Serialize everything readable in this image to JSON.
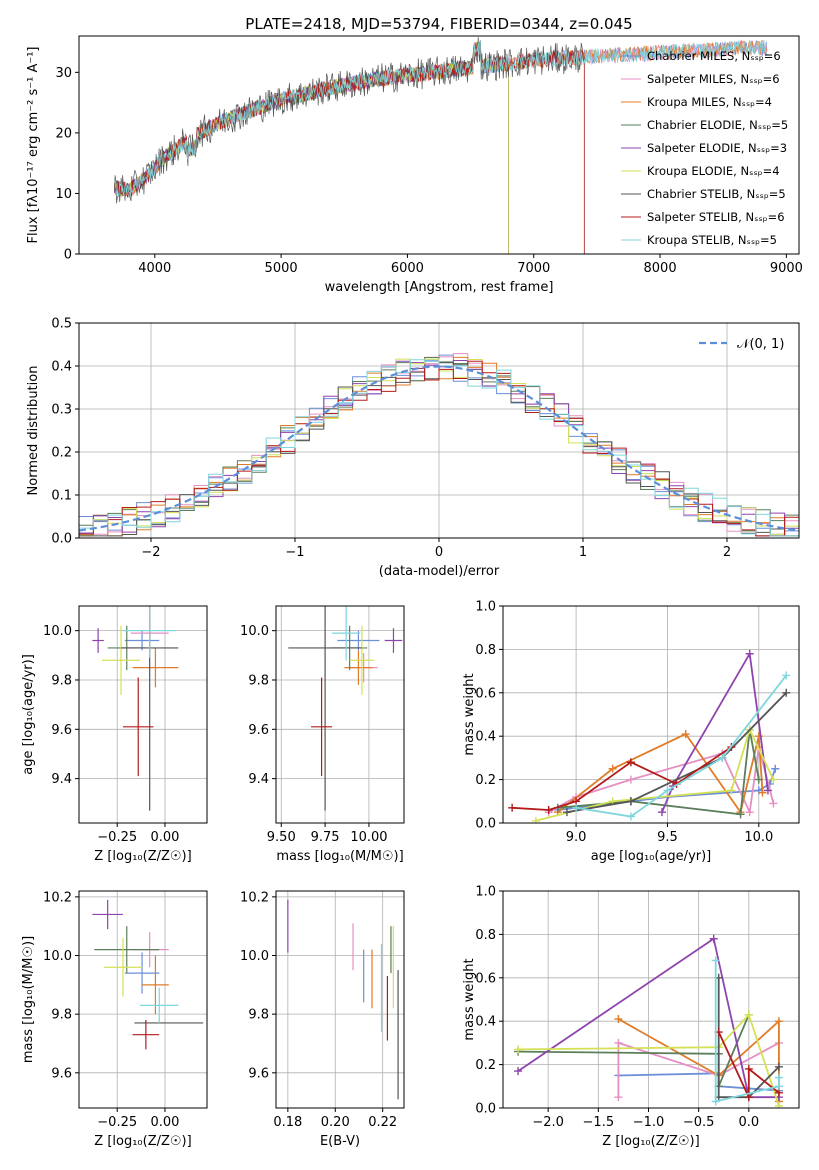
{
  "colors": [
    "#6a8fd8",
    "#e58fc4",
    "#e07b28",
    "#5a7f5a",
    "#8e44ad",
    "#d4e157",
    "#555555",
    "#b31b1b",
    "#7fd6dc"
  ],
  "chart_data": [
    {
      "id": "spectrum",
      "type": "line",
      "title": "PLATE=2418, MJD=53794, FIBERID=0344, z=0.045",
      "xlabel": "wavelength [Angstrom, rest frame]",
      "ylabel": "Flux [fλ10⁻¹⁷ erg cm⁻² s⁻¹ A⁻¹]",
      "xlim": [
        3400,
        9100
      ],
      "ylim": [
        0,
        36
      ],
      "xticks": [
        "4000",
        "5000",
        "6000",
        "7000",
        "8000",
        "9000"
      ],
      "yticks": [
        "0",
        "10",
        "20",
        "30"
      ],
      "grid": false,
      "legend_position": "top-right",
      "continuum": [
        [
          3680,
          11
        ],
        [
          3800,
          10.5
        ],
        [
          3950,
          13
        ],
        [
          4050,
          15.5
        ],
        [
          4300,
          19.5
        ],
        [
          4600,
          22.5
        ],
        [
          5000,
          25.5
        ],
        [
          5400,
          27.5
        ],
        [
          5800,
          29
        ],
        [
          6200,
          30
        ],
        [
          6600,
          31
        ],
        [
          7000,
          32
        ],
        [
          7400,
          32.5
        ],
        [
          7800,
          33
        ],
        [
          8200,
          33.5
        ],
        [
          8600,
          34
        ],
        [
          8850,
          34
        ]
      ],
      "series": [
        {
          "name": "Chabrier MILES, N_SSP=6",
          "x_range": [
            3680,
            8850
          ]
        },
        {
          "name": "Salpeter MILES, N_SSP=6",
          "x_range": [
            3680,
            8850
          ]
        },
        {
          "name": "Kroupa MILES, N_SSP=4",
          "x_range": [
            3680,
            8850
          ]
        },
        {
          "name": "Chabrier ELODIE, N_SSP=5",
          "x_range": [
            3680,
            6800
          ]
        },
        {
          "name": "Salpeter ELODIE, N_SSP=3",
          "x_range": [
            3680,
            6800
          ]
        },
        {
          "name": "Kroupa ELODIE, N_SSP=4",
          "x_range": [
            3680,
            6800
          ]
        },
        {
          "name": "Chabrier STELIB, N_SSP=5",
          "x_range": [
            3680,
            7400
          ]
        },
        {
          "name": "Salpeter STELIB, N_SSP=6",
          "x_range": [
            3680,
            7400
          ]
        },
        {
          "name": "Kroupa STELIB, N_SSP=5",
          "x_range": [
            3680,
            8850
          ]
        }
      ]
    },
    {
      "id": "residuals",
      "type": "line",
      "xlabel": "(data-model)/error",
      "ylabel": "Normed distribution",
      "xlim": [
        -2.5,
        2.5
      ],
      "ylim": [
        0,
        0.5
      ],
      "xticks": [
        "−2",
        "−1",
        "0",
        "1",
        "2"
      ],
      "yticks": [
        "0.0",
        "0.1",
        "0.2",
        "0.3",
        "0.4",
        "0.5"
      ],
      "grid": true,
      "legend_position": "top-right",
      "reference_curve": {
        "name": "𝒩(0, 1)",
        "mean": 0,
        "sigma": 1
      },
      "bin_width": 0.1
    },
    {
      "id": "age-vs-z",
      "type": "scatter",
      "xlabel": "Z [log₁₀(Z/Z☉)]",
      "ylabel": "age  [log₁₀(age/yr)]",
      "xlim": [
        -0.45,
        0.22
      ],
      "ylim": [
        9.22,
        10.1
      ],
      "xticks": [
        "−0.25",
        "0.00"
      ],
      "yticks": [
        "9.4",
        "9.6",
        "9.8",
        "10.0"
      ],
      "grid": true,
      "points": [
        {
          "x": -0.12,
          "y": 9.96,
          "xerr": 0.09,
          "yerr": 0.04
        },
        {
          "x": -0.08,
          "y": 9.99,
          "xerr": 0.1,
          "yerr": 0.04
        },
        {
          "x": -0.05,
          "y": 9.85,
          "xerr": 0.12,
          "yerr": 0.08
        },
        {
          "x": -0.2,
          "y": 9.93,
          "xerr": 0.1,
          "yerr": 0.09
        },
        {
          "x": -0.35,
          "y": 9.96,
          "xerr": 0.03,
          "yerr": 0.05
        },
        {
          "x": -0.23,
          "y": 9.88,
          "xerr": 0.1,
          "yerr": 0.14
        },
        {
          "x": -0.08,
          "y": 9.93,
          "xerr": 0.15,
          "yerr": 0.66
        },
        {
          "x": -0.14,
          "y": 9.61,
          "xerr": 0.08,
          "yerr": 0.2
        },
        {
          "x": -0.08,
          "y": 10.0,
          "xerr": 0.14,
          "yerr": 0.11
        }
      ]
    },
    {
      "id": "age-vs-mass",
      "type": "scatter",
      "xlabel": "mass [log₁₀(M/M☉)]",
      "ylabel": "",
      "xlim": [
        9.47,
        10.2
      ],
      "ylim": [
        9.22,
        10.1
      ],
      "xticks": [
        "9.50",
        "9.75",
        "10.00"
      ],
      "yticks": [
        "9.4",
        "9.6",
        "9.8",
        "10.0"
      ],
      "grid": true,
      "points": [
        {
          "x": 9.94,
          "y": 9.96,
          "xerr": 0.12,
          "yerr": 0.04
        },
        {
          "x": 9.97,
          "y": 9.85,
          "xerr": 0.08,
          "yerr": 0.06
        },
        {
          "x": 9.94,
          "y": 9.85,
          "xerr": 0.08,
          "yerr": 0.07
        },
        {
          "x": 9.89,
          "y": 9.93,
          "xerr": 0.1,
          "yerr": 0.09
        },
        {
          "x": 10.14,
          "y": 9.96,
          "xerr": 0.05,
          "yerr": 0.05
        },
        {
          "x": 9.96,
          "y": 9.88,
          "xerr": 0.07,
          "yerr": 0.14
        },
        {
          "x": 9.75,
          "y": 9.93,
          "xerr": 0.21,
          "yerr": 0.66
        },
        {
          "x": 9.73,
          "y": 9.61,
          "xerr": 0.06,
          "yerr": 0.2
        },
        {
          "x": 9.87,
          "y": 9.99,
          "xerr": 0.08,
          "yerr": 0.11
        }
      ]
    },
    {
      "id": "weight-vs-age",
      "type": "line",
      "xlabel": "age  [log₁₀(age/yr)]",
      "ylabel": "mass weight",
      "xlim": [
        8.6,
        10.22
      ],
      "ylim": [
        0,
        1
      ],
      "xticks": [
        "9.0",
        "9.5",
        "10.0"
      ],
      "yticks": [
        "0.0",
        "0.2",
        "0.4",
        "0.6",
        "0.8",
        "1.0"
      ],
      "grid": true,
      "series": [
        {
          "x": [
            8.9,
            9.0,
            9.3,
            9.5,
            10.0,
            10.06,
            10.09
          ],
          "y": [
            0.06,
            0.07,
            0.1,
            0.12,
            0.15,
            0.18,
            0.25
          ]
        },
        {
          "x": [
            8.85,
            9.0,
            9.3,
            9.8,
            9.95,
            10.0,
            10.08
          ],
          "y": [
            0.05,
            0.12,
            0.2,
            0.32,
            0.05,
            0.35,
            0.09
          ]
        },
        {
          "x": [
            8.9,
            9.2,
            9.6,
            9.9,
            10.0,
            10.02
          ],
          "y": [
            0.05,
            0.25,
            0.41,
            0.05,
            0.4,
            0.14
          ]
        },
        {
          "x": [
            8.9,
            9.3,
            9.9,
            9.95,
            10.0
          ],
          "y": [
            0.07,
            0.1,
            0.04,
            0.43,
            0.2
          ]
        },
        {
          "x": [
            9.47,
            9.53,
            9.95,
            10.05
          ],
          "y": [
            0.05,
            0.17,
            0.78,
            0.15
          ]
        },
        {
          "x": [
            8.78,
            9.2,
            9.85,
            9.95,
            10.08
          ],
          "y": [
            0.01,
            0.1,
            0.15,
            0.43,
            0.2
          ]
        },
        {
          "x": [
            8.95,
            9.3,
            9.8,
            10.15
          ],
          "y": [
            0.05,
            0.1,
            0.3,
            0.6
          ]
        },
        {
          "x": [
            8.65,
            8.85,
            9.0,
            9.3,
            9.55,
            9.85
          ],
          "y": [
            0.07,
            0.06,
            0.1,
            0.28,
            0.18,
            0.35
          ]
        },
        {
          "x": [
            9.0,
            9.3,
            9.5,
            9.8,
            10.15
          ],
          "y": [
            0.07,
            0.03,
            0.15,
            0.3,
            0.68
          ]
        }
      ]
    },
    {
      "id": "mass-vs-z",
      "type": "scatter",
      "xlabel": "Z [log₁₀(Z/Z☉)]",
      "ylabel": "mass [log₁₀(M/M☉)]",
      "xlim": [
        -0.45,
        0.22
      ],
      "ylim": [
        9.48,
        10.22
      ],
      "xticks": [
        "−0.25",
        "0.00"
      ],
      "yticks": [
        "9.6",
        "9.8",
        "10.0",
        "10.2"
      ],
      "grid": true,
      "points": [
        {
          "x": -0.12,
          "y": 9.94,
          "xerr": 0.09,
          "yerr": 0.07
        },
        {
          "x": -0.08,
          "y": 10.02,
          "xerr": 0.1,
          "yerr": 0.06
        },
        {
          "x": -0.05,
          "y": 9.9,
          "xerr": 0.07,
          "yerr": 0.1
        },
        {
          "x": -0.2,
          "y": 10.02,
          "xerr": 0.17,
          "yerr": 0.08
        },
        {
          "x": -0.3,
          "y": 10.14,
          "xerr": 0.08,
          "yerr": 0.05
        },
        {
          "x": -0.22,
          "y": 9.96,
          "xerr": 0.1,
          "yerr": 0.1
        },
        {
          "x": 0.02,
          "y": 9.77,
          "xerr": 0.18,
          "yerr": 0.0
        },
        {
          "x": -0.1,
          "y": 9.73,
          "xerr": 0.07,
          "yerr": 0.05
        },
        {
          "x": -0.03,
          "y": 9.83,
          "xerr": 0.1,
          "yerr": 0.06
        }
      ]
    },
    {
      "id": "mass-vs-ebv",
      "type": "scatter",
      "xlabel": "E(B-V)",
      "ylabel": "",
      "xlim": [
        0.175,
        0.229
      ],
      "ylim": [
        9.48,
        10.22
      ],
      "xticks": [
        "0.18",
        "0.20",
        "0.22"
      ],
      "yticks": [
        "9.6",
        "9.8",
        "10.0",
        "10.2"
      ],
      "grid": true,
      "points": [
        {
          "x": 0.212,
          "y": 9.93,
          "xerr": 0,
          "yerr": 0.09
        },
        {
          "x": 0.2075,
          "y": 10.03,
          "xerr": 0,
          "yerr": 0.08
        },
        {
          "x": 0.2155,
          "y": 9.92,
          "xerr": 0,
          "yerr": 0.1
        },
        {
          "x": 0.2235,
          "y": 10.02,
          "xerr": 0,
          "yerr": 0.08
        },
        {
          "x": 0.18,
          "y": 10.1,
          "xerr": 0,
          "yerr": 0.09
        },
        {
          "x": 0.2245,
          "y": 9.96,
          "xerr": 0,
          "yerr": 0.14
        },
        {
          "x": 0.2265,
          "y": 9.73,
          "xerr": 0,
          "yerr": 0.22
        },
        {
          "x": 0.222,
          "y": 9.82,
          "xerr": 0,
          "yerr": 0.11
        },
        {
          "x": 0.2195,
          "y": 9.89,
          "xerr": 0,
          "yerr": 0.15
        }
      ]
    },
    {
      "id": "weight-vs-z",
      "type": "line",
      "xlabel": "Z [log₁₀(Z/Z☉)]",
      "ylabel": "mass weight",
      "xlim": [
        -2.45,
        0.5
      ],
      "ylim": [
        0,
        1
      ],
      "xticks": [
        "−2.0",
        "−1.5",
        "−1.0",
        "−0.5",
        "0.0"
      ],
      "yticks": [
        "0.0",
        "0.2",
        "0.4",
        "0.6",
        "0.8",
        "1.0"
      ],
      "grid": true,
      "series": [
        {
          "x": [
            -1.3,
            -0.3,
            -0.3,
            0.3
          ],
          "y": [
            0.15,
            0.16,
            0.1,
            0.08
          ]
        },
        {
          "x": [
            -1.3,
            -1.3,
            -0.3,
            0.3
          ],
          "y": [
            0.05,
            0.3,
            0.15,
            0.3
          ]
        },
        {
          "x": [
            -1.3,
            -0.3,
            0.3,
            0.3
          ],
          "y": [
            0.41,
            0.15,
            0.4,
            0.03
          ]
        },
        {
          "x": [
            -2.3,
            -0.3,
            -0.3,
            0.0
          ],
          "y": [
            0.26,
            0.25,
            0.1,
            0.43
          ]
        },
        {
          "x": [
            -2.3,
            -0.35,
            0.0,
            0.3
          ],
          "y": [
            0.17,
            0.78,
            0.05,
            0.05
          ]
        },
        {
          "x": [
            -2.3,
            -0.3,
            0.0,
            0.3
          ],
          "y": [
            0.27,
            0.28,
            0.43,
            0.01
          ]
        },
        {
          "x": [
            -0.3,
            -0.3,
            0.0,
            0.3
          ],
          "y": [
            0.6,
            0.05,
            0.05,
            0.19
          ]
        },
        {
          "x": [
            -0.3,
            0.0,
            0.0,
            0.3
          ],
          "y": [
            0.35,
            0.05,
            0.18,
            0.07
          ]
        },
        {
          "x": [
            -0.33,
            -0.33,
            0.3,
            0.3
          ],
          "y": [
            0.68,
            0.03,
            0.1,
            0.14
          ]
        }
      ]
    }
  ]
}
